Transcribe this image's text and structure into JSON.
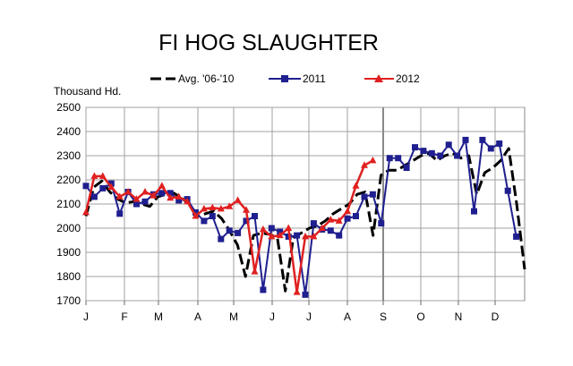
{
  "chart_data": {
    "type": "line",
    "title": "FI HOG SLAUGHTER",
    "ylabel": "Thousand Hd.",
    "ylim": [
      1700,
      2500
    ],
    "yticks": [
      1700,
      1800,
      1900,
      2000,
      2100,
      2200,
      2300,
      2400,
      2500
    ],
    "x_tick_labels": [
      "J",
      "F",
      "M",
      "A",
      "M",
      "J",
      "J",
      "A",
      "S",
      "O",
      "N",
      "D"
    ],
    "grid": true,
    "legend_position": "top",
    "series": [
      {
        "name": "Avg. '06-'10",
        "color": "#000000",
        "style": "dashed",
        "values": [
          2050,
          2170,
          2195,
          2150,
          2120,
          2105,
          2110,
          2100,
          2090,
          2130,
          2140,
          2145,
          2125,
          2100,
          2050,
          2060,
          2070,
          2040,
          1990,
          1930,
          1800,
          1970,
          1980,
          1975,
          1960,
          1740,
          1960,
          1980,
          2000,
          2010,
          2030,
          2060,
          2080,
          2100,
          2140,
          2150,
          1970,
          2220,
          2240,
          2240,
          2260,
          2280,
          2300,
          2310,
          2280,
          2300,
          2310,
          2290,
          2300,
          2140,
          2230,
          2250,
          2280,
          2330,
          2100,
          1830
        ]
      },
      {
        "name": "2011",
        "color": "#1f1f8f",
        "marker": "square",
        "values": [
          2175,
          2130,
          2165,
          2185,
          2060,
          2150,
          2100,
          2110,
          2140,
          2145,
          2145,
          2115,
          2120,
          2065,
          2030,
          2050,
          1955,
          1990,
          1980,
          2030,
          2050,
          1745,
          2000,
          1985,
          1965,
          1970,
          1725,
          2020,
          1995,
          1990,
          1970,
          2040,
          2050,
          2130,
          2140,
          2020,
          2290,
          2290,
          2250,
          2335,
          2320,
          2310,
          2300,
          2345,
          2300,
          2365,
          2070,
          2365,
          2330,
          2350,
          2155,
          1965
        ]
      },
      {
        "name": "2012",
        "color": "#e02020",
        "marker": "triangle",
        "values": [
          2065,
          2215,
          2215,
          2170,
          2130,
          2150,
          2120,
          2150,
          2135,
          2175,
          2125,
          2130,
          2110,
          2050,
          2080,
          2085,
          2080,
          2090,
          2115,
          2075,
          1820,
          1995,
          1965,
          1970,
          2000,
          1735,
          1965,
          1965,
          2000,
          2035,
          2030,
          2070,
          2175,
          2260,
          2280
        ]
      }
    ]
  }
}
